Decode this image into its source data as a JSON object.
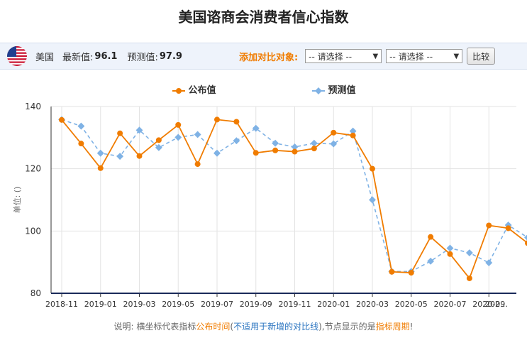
{
  "page_title": "美国谘商会消费者信心指数",
  "toolbar": {
    "country": "美国",
    "latest_label": "最新值:",
    "latest_value": "96.1",
    "forecast_label": "预测值:",
    "forecast_value": "97.9",
    "compare_label": "添加对比对象:",
    "select_1": "-- 请选择 --",
    "select_2": "-- 请选择 --",
    "compare_button": "比较"
  },
  "footer": {
    "prefix": "说明: 横坐标代表指标",
    "publish_time": "公布时间",
    "paren_open": "(",
    "not_applicable": "不适用于新增的对比线",
    "paren_close": ")",
    "middle": ",节点显示的是",
    "indicator_period": "指标周期",
    "suffix": "!"
  },
  "colors": {
    "published": "#f07c00",
    "forecast": "#7fb2e5",
    "toolbar_bg": "#eef3fb"
  },
  "chart_data": {
    "type": "line",
    "ylabel": "单位: ()",
    "ylim": [
      80,
      140
    ],
    "yticks": [
      80,
      100,
      120,
      140
    ],
    "xtick_labels": [
      "2018-11",
      "2019-01",
      "2019-03",
      "2019-05",
      "2019-07",
      "2019-09",
      "2019-11",
      "2020-01",
      "2020-03",
      "2020-05",
      "2020-07",
      "2020-09",
      "202…"
    ],
    "grid": true,
    "legend_position": "top",
    "series": [
      {
        "name": "公布值",
        "style": "solid",
        "values": [
          135.7,
          128.1,
          120.2,
          131.4,
          124.1,
          129.2,
          134.1,
          121.5,
          135.8,
          135.1,
          125.1,
          125.9,
          125.5,
          126.5,
          131.6,
          130.7,
          120.0,
          86.9,
          86.6,
          98.1,
          92.6,
          84.8,
          101.8,
          100.9,
          96.1
        ]
      },
      {
        "name": "预测值",
        "style": "dashed",
        "values": [
          135.8,
          133.7,
          125.0,
          124.0,
          132.4,
          126.8,
          130.1,
          131.0,
          125.0,
          129.0,
          133.0,
          128.2,
          127.0,
          128.2,
          128.0,
          132.1,
          110.0,
          87.0,
          87.0,
          90.3,
          94.5,
          93.0,
          89.8,
          101.9,
          97.9
        ]
      }
    ]
  }
}
